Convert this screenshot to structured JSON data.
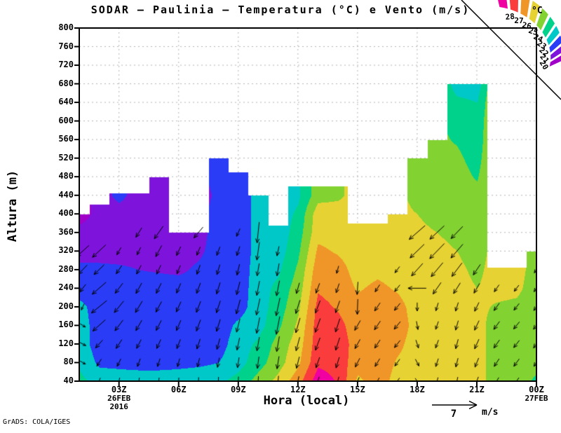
{
  "title": "SODAR – Paulinia – Temperatura (°C) e Vento (m/s)",
  "watermark": "GrADS: COLA/IGES",
  "axes": {
    "y_label": "Altura (m)",
    "x_label": "Hora (local)",
    "y_ticks": [
      40,
      80,
      120,
      160,
      200,
      240,
      280,
      320,
      360,
      400,
      440,
      480,
      520,
      560,
      600,
      640,
      680,
      720,
      760,
      800
    ],
    "x_ticks": [
      {
        "hour": 3,
        "label": "03Z",
        "sub": [
          "26FEB",
          "2016"
        ]
      },
      {
        "hour": 6,
        "label": "06Z",
        "sub": []
      },
      {
        "hour": 9,
        "label": "09Z",
        "sub": []
      },
      {
        "hour": 12,
        "label": "12Z",
        "sub": []
      },
      {
        "hour": 15,
        "label": "15Z",
        "sub": []
      },
      {
        "hour": 18,
        "label": "18Z",
        "sub": []
      },
      {
        "hour": 21,
        "label": "21Z",
        "sub": []
      },
      {
        "hour": 24,
        "label": "00Z",
        "sub": [
          "27FEB"
        ]
      }
    ]
  },
  "legend": {
    "unit": "°C"
  },
  "reference_arrow": {
    "value": "7",
    "unit": "m/s"
  },
  "chart_data": {
    "type": "heatmap",
    "title": "SODAR – Paulinia – Temperatura (°C) e Vento (m/s)",
    "xlabel": "Hora (local)",
    "ylabel": "Altura (m)",
    "ylim": [
      40,
      800
    ],
    "x_step_hours": 1,
    "x_tick_labels": [
      "03Z",
      "06Z",
      "09Z",
      "12Z",
      "15Z",
      "18Z",
      "21Z",
      "00Z"
    ],
    "heights_m": [
      40,
      80,
      120,
      160,
      200,
      240,
      280,
      320,
      360,
      400,
      440,
      480,
      520,
      560,
      600,
      640,
      680,
      720,
      760
    ],
    "levels_c": [
      20,
      21,
      22,
      23,
      24,
      25,
      26,
      27,
      28
    ],
    "palette": [
      "#A000C8",
      "#7E14DC",
      "#2A3CF5",
      "#00C8C8",
      "#00D28C",
      "#82D232",
      "#E6D232",
      "#F09628",
      "#FA3C3C",
      "#F000A0"
    ],
    "palette_names": [
      "dark-purple <20",
      "violet 20-21",
      "blue 21-22",
      "cyan 22-23",
      "spring-green 23-24",
      "yellow-green 24-25",
      "yellow 25-26",
      "orange 26-27",
      "red 27-28",
      "magenta >28"
    ],
    "grid_on": true,
    "column_tops_m": [
      400,
      420,
      445,
      445,
      480,
      360,
      360,
      520,
      490,
      440,
      375,
      460,
      460,
      460,
      380,
      380,
      400,
      520,
      560,
      680,
      680,
      285,
      285,
      320
    ],
    "temps_c": [
      [
        23.3,
        22.8,
        22.5,
        22.5,
        22.3,
        21.5,
        21.3,
        20.5,
        20.3,
        19.6
      ],
      [
        22.6,
        21.8,
        21.5,
        21.5,
        21.5,
        21.5,
        21.3,
        20.5,
        20.4,
        20.3
      ],
      [
        22.6,
        21.7,
        21.5,
        21.5,
        21.5,
        21.5,
        21.2,
        20.5,
        20.4,
        20.4,
        21.4
      ],
      [
        22.6,
        21.6,
        21.5,
        21.5,
        21.5,
        21.5,
        21.0,
        20.5,
        20.4,
        20.3,
        20.3
      ],
      [
        22.6,
        21.6,
        21.5,
        21.5,
        21.5,
        21.5,
        20.9,
        20.5,
        20.4,
        20.4,
        20.4,
        20.4
      ],
      [
        22.6,
        21.7,
        21.5,
        21.5,
        21.5,
        21.5,
        20.8,
        20.5,
        20.4
      ],
      [
        22.7,
        21.8,
        21.5,
        21.5,
        21.5,
        21.5,
        21.2,
        20.8,
        20.6
      ],
      [
        22.8,
        22.0,
        21.6,
        21.5,
        21.5,
        21.5,
        21.5,
        21.5,
        21.5,
        21.5,
        21.2,
        21.5,
        21.5
      ],
      [
        23.4,
        22.6,
        22.5,
        22.2,
        21.6,
        21.5,
        21.5,
        21.5,
        21.5,
        21.5,
        21.5,
        21.6
      ],
      [
        24.4,
        23.6,
        23.2,
        22.6,
        22.5,
        22.5,
        22.4,
        22.3,
        22.3,
        22.3,
        22.3
      ],
      [
        25.3,
        24.6,
        24.4,
        23.8,
        23.5,
        23.3,
        22.8,
        22.5,
        22.4
      ],
      [
        26.6,
        25.8,
        25.5,
        25.2,
        24.8,
        24.5,
        24.2,
        23.8,
        23.5,
        23.2,
        22.8
      ],
      [
        28.6,
        27.8,
        27.6,
        27.5,
        27.3,
        26.9,
        26.6,
        26.2,
        25.7,
        25.6,
        24.6
      ],
      [
        27.9,
        27.6,
        27.5,
        27.3,
        26.9,
        26.6,
        26.4,
        25.9,
        25.6,
        25.5,
        24.8
      ],
      [
        25.8,
        26.4,
        26.6,
        26.5,
        26.3,
        25.9,
        25.6,
        25.5,
        25.4
      ],
      [
        26.4,
        26.5,
        26.6,
        26.6,
        26.5,
        26.2,
        25.8,
        25.5,
        25.4
      ],
      [
        25.7,
        25.9,
        26.2,
        26.4,
        26.3,
        25.9,
        25.6,
        25.4,
        25.4,
        25.3
      ],
      [
        25.5,
        25.6,
        25.6,
        25.7,
        25.6,
        25.5,
        25.4,
        25.3,
        25.2,
        25.0,
        24.6,
        24.4,
        24.3
      ],
      [
        25.5,
        25.6,
        25.6,
        25.6,
        25.5,
        25.4,
        25.3,
        25.2,
        25.0,
        24.7,
        24.5,
        24.4,
        24.3,
        24.2
      ],
      [
        25.4,
        25.5,
        25.5,
        25.5,
        25.4,
        25.3,
        25.2,
        25.0,
        24.8,
        24.6,
        24.5,
        24.4,
        24.2,
        23.9,
        23.6,
        23.3,
        22.4
      ],
      [
        25.3,
        25.4,
        25.4,
        25.3,
        25.2,
        25.0,
        24.8,
        24.6,
        24.5,
        24.4,
        24.3,
        23.9,
        23.6,
        23.4,
        23.3,
        23.0,
        22.4
      ],
      [
        24.6,
        24.5,
        24.5,
        24.6,
        24.9,
        25.3,
        25.4
      ],
      [
        24.5,
        24.4,
        24.5,
        24.6,
        24.8,
        25.2,
        25.4
      ],
      [
        23.8,
        24.3,
        24.4,
        24.4,
        24.5,
        24.5,
        24.5,
        24.4
      ]
    ],
    "wind_reference": {
      "value": 7,
      "unit": "m/s"
    },
    "wind_vectors": [
      [
        1,
        80,
        330,
        9
      ],
      [
        1,
        120,
        332,
        10
      ],
      [
        1,
        160,
        328,
        9
      ],
      [
        1,
        200,
        245,
        10
      ],
      [
        1,
        240,
        232,
        14
      ],
      [
        1,
        280,
        226,
        18
      ],
      [
        1,
        320,
        222,
        24
      ],
      [
        2,
        40,
        250,
        10
      ],
      [
        2,
        80,
        238,
        12
      ],
      [
        2,
        120,
        228,
        15
      ],
      [
        2,
        160,
        222,
        24
      ],
      [
        2,
        200,
        219,
        28
      ],
      [
        2,
        240,
        221,
        26
      ],
      [
        2,
        280,
        224,
        20
      ],
      [
        2,
        320,
        223,
        26
      ],
      [
        3,
        40,
        258,
        10
      ],
      [
        3,
        80,
        244,
        12
      ],
      [
        3,
        120,
        237,
        15
      ],
      [
        3,
        160,
        233,
        19
      ],
      [
        3,
        200,
        231,
        21
      ],
      [
        3,
        240,
        233,
        18
      ],
      [
        3,
        280,
        236,
        14
      ],
      [
        3,
        320,
        240,
        12
      ],
      [
        4,
        40,
        262,
        10
      ],
      [
        4,
        80,
        250,
        12
      ],
      [
        4,
        120,
        243,
        14
      ],
      [
        4,
        160,
        240,
        17
      ],
      [
        4,
        200,
        239,
        19
      ],
      [
        4,
        240,
        241,
        17
      ],
      [
        4,
        280,
        243,
        14
      ],
      [
        4,
        320,
        244,
        12
      ],
      [
        4,
        360,
        238,
        16
      ],
      [
        5,
        40,
        264,
        10
      ],
      [
        5,
        80,
        252,
        12
      ],
      [
        5,
        120,
        246,
        14
      ],
      [
        5,
        160,
        243,
        16
      ],
      [
        5,
        200,
        242,
        17
      ],
      [
        5,
        240,
        244,
        16
      ],
      [
        5,
        280,
        245,
        14
      ],
      [
        5,
        320,
        242,
        18
      ],
      [
        5,
        360,
        235,
        22
      ],
      [
        6,
        40,
        266,
        10
      ],
      [
        6,
        80,
        255,
        12
      ],
      [
        6,
        120,
        249,
        14
      ],
      [
        6,
        160,
        247,
        16
      ],
      [
        6,
        200,
        246,
        16
      ],
      [
        6,
        240,
        247,
        15
      ],
      [
        6,
        280,
        248,
        13
      ],
      [
        6,
        320,
        245,
        14
      ],
      [
        7,
        40,
        268,
        11
      ],
      [
        7,
        80,
        257,
        13
      ],
      [
        7,
        120,
        252,
        15
      ],
      [
        7,
        160,
        250,
        17
      ],
      [
        7,
        200,
        249,
        17
      ],
      [
        7,
        240,
        250,
        16
      ],
      [
        7,
        280,
        251,
        14
      ],
      [
        7,
        320,
        248,
        13
      ],
      [
        7,
        360,
        230,
        20
      ],
      [
        8,
        40,
        268,
        12
      ],
      [
        8,
        80,
        259,
        14
      ],
      [
        8,
        120,
        255,
        16
      ],
      [
        8,
        160,
        253,
        18
      ],
      [
        8,
        200,
        252,
        18
      ],
      [
        8,
        240,
        253,
        17
      ],
      [
        8,
        280,
        254,
        15
      ],
      [
        8,
        320,
        250,
        13
      ],
      [
        9,
        40,
        267,
        13
      ],
      [
        9,
        80,
        261,
        15
      ],
      [
        9,
        120,
        258,
        18
      ],
      [
        9,
        160,
        256,
        20
      ],
      [
        9,
        200,
        255,
        21
      ],
      [
        9,
        240,
        256,
        19
      ],
      [
        9,
        280,
        257,
        16
      ],
      [
        9,
        320,
        252,
        14
      ],
      [
        9,
        360,
        246,
        12
      ],
      [
        10,
        40,
        266,
        14
      ],
      [
        10,
        80,
        262,
        17
      ],
      [
        10,
        120,
        260,
        20
      ],
      [
        10,
        160,
        259,
        23
      ],
      [
        10,
        200,
        258,
        24
      ],
      [
        10,
        240,
        259,
        21
      ],
      [
        10,
        280,
        260,
        18
      ],
      [
        10,
        320,
        262,
        26
      ],
      [
        10,
        360,
        264,
        30
      ],
      [
        11,
        40,
        264,
        15
      ],
      [
        11,
        80,
        261,
        18
      ],
      [
        11,
        120,
        260,
        22
      ],
      [
        11,
        160,
        259,
        26
      ],
      [
        11,
        200,
        258,
        26
      ],
      [
        11,
        240,
        259,
        22
      ],
      [
        11,
        280,
        260,
        18
      ],
      [
        11,
        320,
        258,
        14
      ],
      [
        12,
        40,
        258,
        14
      ],
      [
        12,
        80,
        256,
        17
      ],
      [
        12,
        120,
        255,
        20
      ],
      [
        12,
        160,
        254,
        22
      ],
      [
        12,
        200,
        253,
        20
      ],
      [
        12,
        240,
        254,
        16
      ],
      [
        13,
        40,
        252,
        13
      ],
      [
        13,
        80,
        251,
        16
      ],
      [
        13,
        120,
        250,
        19
      ],
      [
        13,
        160,
        250,
        21
      ],
      [
        13,
        200,
        249,
        19
      ],
      [
        13,
        240,
        250,
        15
      ],
      [
        14,
        40,
        254,
        13
      ],
      [
        14,
        80,
        253,
        16
      ],
      [
        14,
        120,
        252,
        19
      ],
      [
        14,
        160,
        252,
        20
      ],
      [
        14,
        200,
        251,
        18
      ],
      [
        14,
        240,
        252,
        14
      ],
      [
        14,
        280,
        255,
        11
      ],
      [
        15,
        40,
        247,
        12
      ],
      [
        15,
        80,
        243,
        14
      ],
      [
        15,
        120,
        241,
        15
      ],
      [
        15,
        160,
        240,
        16
      ],
      [
        15,
        200,
        268,
        22
      ],
      [
        15,
        240,
        266,
        18
      ],
      [
        16,
        40,
        242,
        11
      ],
      [
        16,
        80,
        239,
        13
      ],
      [
        16,
        120,
        237,
        14
      ],
      [
        16,
        160,
        236,
        15
      ],
      [
        16,
        200,
        236,
        14
      ],
      [
        16,
        240,
        237,
        12
      ],
      [
        17,
        40,
        236,
        11
      ],
      [
        17,
        80,
        234,
        12
      ],
      [
        17,
        120,
        232,
        13
      ],
      [
        17,
        160,
        231,
        14
      ],
      [
        17,
        200,
        231,
        13
      ],
      [
        17,
        240,
        232,
        12
      ],
      [
        17,
        280,
        233,
        11
      ],
      [
        18,
        40,
        305,
        10
      ],
      [
        18,
        80,
        298,
        11
      ],
      [
        18,
        120,
        288,
        12
      ],
      [
        18,
        160,
        280,
        12
      ],
      [
        18,
        200,
        270,
        12
      ],
      [
        18,
        240,
        180,
        26
      ],
      [
        18,
        280,
        228,
        24
      ],
      [
        18,
        320,
        224,
        28
      ],
      [
        18,
        360,
        221,
        30
      ],
      [
        19,
        40,
        255,
        11
      ],
      [
        19,
        80,
        252,
        12
      ],
      [
        19,
        120,
        250,
        12
      ],
      [
        19,
        160,
        251,
        12
      ],
      [
        19,
        200,
        253,
        12
      ],
      [
        19,
        240,
        235,
        20
      ],
      [
        19,
        280,
        230,
        26
      ],
      [
        19,
        320,
        226,
        30
      ],
      [
        19,
        360,
        223,
        28
      ],
      [
        20,
        40,
        258,
        12
      ],
      [
        20,
        80,
        256,
        13
      ],
      [
        20,
        120,
        255,
        14
      ],
      [
        20,
        160,
        254,
        14
      ],
      [
        20,
        200,
        252,
        13
      ],
      [
        20,
        240,
        238,
        18
      ],
      [
        20,
        280,
        233,
        24
      ],
      [
        20,
        320,
        229,
        26
      ],
      [
        20,
        360,
        226,
        24
      ],
      [
        21,
        40,
        250,
        13
      ],
      [
        21,
        80,
        248,
        14
      ],
      [
        21,
        120,
        246,
        15
      ],
      [
        21,
        160,
        245,
        15
      ],
      [
        21,
        200,
        244,
        14
      ],
      [
        21,
        240,
        240,
        16
      ],
      [
        21,
        280,
        236,
        18
      ],
      [
        22,
        40,
        240,
        12
      ],
      [
        22,
        80,
        237,
        13
      ],
      [
        22,
        120,
        235,
        14
      ],
      [
        22,
        160,
        234,
        14
      ],
      [
        22,
        200,
        234,
        13
      ],
      [
        22,
        240,
        235,
        12
      ],
      [
        23,
        40,
        236,
        12
      ],
      [
        23,
        80,
        234,
        13
      ],
      [
        23,
        120,
        232,
        13
      ],
      [
        23,
        160,
        231,
        13
      ],
      [
        23,
        200,
        232,
        12
      ],
      [
        23,
        240,
        233,
        11
      ],
      [
        24,
        40,
        238,
        12
      ],
      [
        24,
        80,
        236,
        13
      ],
      [
        24,
        120,
        234,
        14
      ],
      [
        24,
        160,
        233,
        14
      ],
      [
        24,
        200,
        234,
        13
      ],
      [
        24,
        240,
        235,
        12
      ],
      [
        24,
        280,
        236,
        11
      ]
    ]
  }
}
